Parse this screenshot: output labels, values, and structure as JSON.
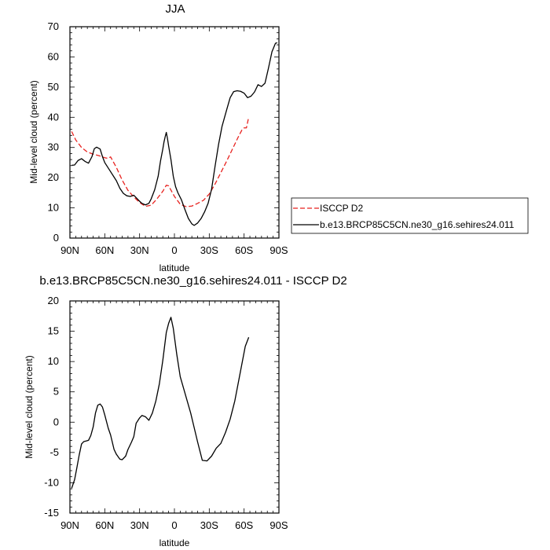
{
  "chart_data": [
    {
      "type": "line",
      "title": "JJA",
      "xlabel": "latitude",
      "ylabel": "Mid-level cloud (percent)",
      "xlim": [
        90,
        -90
      ],
      "ylim": [
        0,
        70
      ],
      "x_ticks": [
        90,
        60,
        30,
        0,
        -30,
        -60,
        -90
      ],
      "x_tick_labels": [
        "90N",
        "60N",
        "30N",
        "0",
        "30S",
        "60S",
        "90S"
      ],
      "y_ticks": [
        0,
        10,
        20,
        30,
        40,
        50,
        60,
        70
      ],
      "y_tick_labels": [
        "0",
        "10",
        "20",
        "30",
        "40",
        "50",
        "60",
        "70"
      ],
      "grid": false,
      "legend_position": "right",
      "series": [
        {
          "name": "ISCCP D2",
          "color": "#e8221f",
          "dash": "dashed",
          "x": [
            88.5,
            85,
            80,
            75,
            70,
            65,
            60,
            57,
            55,
            50,
            45,
            40,
            35,
            30,
            25,
            20,
            15,
            10,
            7,
            5,
            0,
            -5,
            -10,
            -15,
            -20,
            -25,
            -30,
            -35,
            -40,
            -45,
            -50,
            -55,
            -58,
            -60,
            -62,
            -64
          ],
          "y": [
            35.3,
            32.5,
            30,
            28.5,
            27.8,
            27.3,
            26.6,
            26.4,
            26.9,
            23.4,
            19.2,
            15.8,
            13.6,
            11.8,
            10.5,
            10.9,
            13,
            15.5,
            17.5,
            17.3,
            13.8,
            11.2,
            10.4,
            10.6,
            11.5,
            12.5,
            14.6,
            17.9,
            21.7,
            25.5,
            29.5,
            33.5,
            35.7,
            36.5,
            36.5,
            40.1
          ]
        },
        {
          "name": "b.e13.BRCP85C5CN.ne30_g16.sehires24.011",
          "color": "#000000",
          "dash": "solid",
          "x": [
            88.5,
            86,
            83,
            80,
            77,
            74,
            71,
            69,
            67,
            64,
            62,
            60,
            55,
            50,
            47,
            44,
            41,
            38,
            35,
            32,
            30,
            28,
            25,
            22,
            20,
            17,
            14,
            12,
            10,
            9,
            8,
            7,
            6,
            5,
            3,
            1,
            -1,
            -3,
            -6,
            -9,
            -12,
            -15,
            -17,
            -20,
            -23,
            -26,
            -29,
            -32,
            -35,
            -38,
            -41,
            -45,
            -48,
            -51,
            -54,
            -57,
            -60,
            -63,
            -66,
            -69,
            -72,
            -75,
            -78,
            -81,
            -84,
            -87,
            -88.5
          ],
          "y": [
            24.1,
            24.2,
            25.7,
            26.3,
            25.4,
            24.8,
            27,
            29.6,
            30.1,
            29.5,
            27,
            25,
            22,
            19,
            16.5,
            14.8,
            14,
            13.8,
            14.2,
            13,
            12.2,
            11.5,
            11,
            11.5,
            13,
            16,
            20.5,
            25.5,
            29.5,
            31.8,
            33.5,
            35,
            33,
            30.5,
            26,
            20.5,
            17,
            15,
            12.7,
            9.5,
            6.5,
            4.7,
            4.2,
            5,
            6.5,
            8.7,
            11.5,
            16.2,
            23.8,
            31,
            37,
            42.5,
            46.5,
            48.5,
            48.8,
            48.6,
            48,
            46.5,
            47,
            48.4,
            50.8,
            50.2,
            51.3,
            56.3,
            61.7,
            64.5,
            64.7
          ]
        }
      ]
    },
    {
      "type": "line",
      "title": "b.e13.BRCP85C5CN.ne30_g16.sehires24.011 - ISCCP D2",
      "xlabel": "latitude",
      "ylabel": "Mid-level cloud (percent)",
      "xlim": [
        90,
        -90
      ],
      "ylim": [
        -15,
        20
      ],
      "x_ticks": [
        90,
        60,
        30,
        0,
        -30,
        -60,
        -90
      ],
      "x_tick_labels": [
        "90N",
        "60N",
        "30N",
        "0",
        "30S",
        "60S",
        "90S"
      ],
      "y_ticks": [
        -15,
        -10,
        -5,
        0,
        5,
        10,
        15,
        20
      ],
      "y_tick_labels": [
        "-15",
        "-10",
        "-5",
        "0",
        "5",
        "10",
        "15",
        "20"
      ],
      "grid": false,
      "series": [
        {
          "color": "#000000",
          "dash": "solid",
          "x": [
            88.5,
            86,
            84,
            82,
            80,
            78,
            76,
            74,
            72,
            70,
            68,
            66,
            64,
            62,
            60,
            57,
            55,
            52,
            50,
            47,
            45,
            42,
            40,
            37,
            35,
            33,
            30,
            28,
            25,
            22,
            19,
            16,
            13,
            10,
            7,
            5,
            3,
            1,
            -2,
            -5,
            -8,
            -11,
            -14,
            -17,
            -20,
            -24,
            -28,
            -32,
            -36,
            -40,
            -44,
            -48,
            -52,
            -55,
            -58,
            -61,
            -64
          ],
          "y": [
            -10.9,
            -9.5,
            -7.5,
            -5.4,
            -3.6,
            -3.2,
            -3.1,
            -3,
            -2.2,
            -0.8,
            1.5,
            2.8,
            3,
            2.5,
            1.2,
            -1,
            -2.1,
            -4.5,
            -5.3,
            -6.1,
            -6.2,
            -5.6,
            -4.5,
            -3.3,
            -2.4,
            -0.2,
            0.7,
            1.1,
            0.9,
            0.3,
            1.5,
            3.5,
            6.3,
            10.2,
            14.8,
            16.3,
            17.3,
            15.5,
            11.2,
            7.5,
            5.5,
            3.5,
            1.5,
            -0.9,
            -3.3,
            -6.3,
            -6.4,
            -5.6,
            -4.3,
            -3.5,
            -1.7,
            0.5,
            3.5,
            6.5,
            9.5,
            12.5,
            14
          ]
        }
      ]
    }
  ]
}
